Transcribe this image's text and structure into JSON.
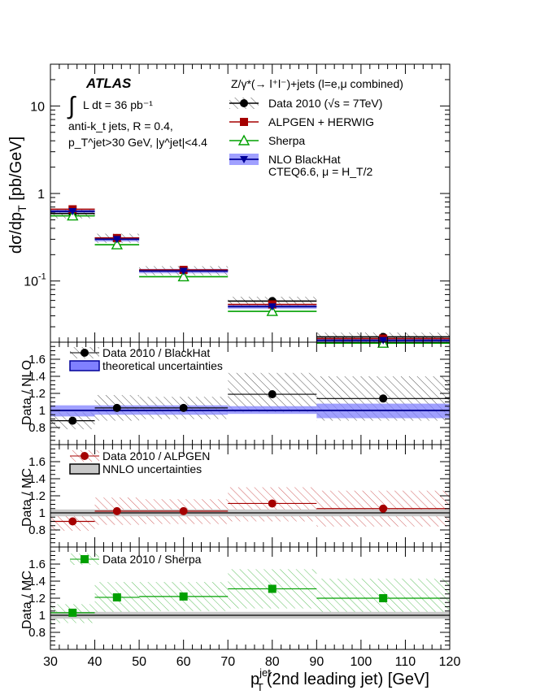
{
  "chart_data": [
    {
      "panel": "main",
      "type": "scatter",
      "ylabel": "dσ/dp_T [pb/GeV]",
      "yscale": "log",
      "ylim": [
        0.02,
        30
      ],
      "xlim": [
        30,
        120
      ],
      "bins": [
        [
          30,
          40
        ],
        [
          40,
          50
        ],
        [
          50,
          70
        ],
        [
          70,
          90
        ],
        [
          90,
          120
        ]
      ],
      "x": [
        35,
        45,
        60,
        80,
        105
      ],
      "series": [
        {
          "name": "Data 2010 (√s = 7TeV)",
          "color": "#000000",
          "marker": "circle",
          "values": [
            0.59,
            0.31,
            0.132,
            0.059,
            0.023
          ]
        },
        {
          "name": "ALPGEN + HERWIG",
          "color": "#a50000",
          "marker": "square",
          "values": [
            0.66,
            0.31,
            0.134,
            0.054,
            0.022
          ]
        },
        {
          "name": "Sherpa",
          "color": "#00a000",
          "marker": "open-triangle",
          "values": [
            0.555,
            0.26,
            0.112,
            0.045,
            0.0195
          ]
        },
        {
          "name": "NLO BlackHat",
          "color": "#000099",
          "marker": "down-triangle",
          "values": [
            0.625,
            0.3,
            0.13,
            0.051,
            0.021
          ]
        }
      ],
      "legend_title": "Z/γ*(→ l⁺l⁻)+jets (l=e,μ combined)",
      "legend_note": "CTEQ6.6, μ = H_T/2",
      "atlas_label": "ATLAS",
      "lumi_text": "L dt = 36 pb⁻¹",
      "cuts_line1": "anti-k_t jets,  R = 0.4,",
      "cuts_line2": "p_T^jet>30 GeV, |y^jet|<4.4"
    },
    {
      "panel": "ratio-nlo",
      "type": "scatter",
      "ylabel": "Data / NLO",
      "ylim": [
        0.6,
        1.8
      ],
      "x": [
        35,
        45,
        60,
        80,
        105
      ],
      "values": [
        0.88,
        1.03,
        1.03,
        1.19,
        1.14
      ],
      "band_low": [
        0.93,
        0.95,
        0.95,
        0.96,
        0.91
      ],
      "band_high": [
        1.06,
        1.06,
        1.06,
        1.05,
        1.08
      ],
      "hatch_low": [
        0.78,
        0.88,
        0.9,
        0.98,
        0.88
      ],
      "hatch_high": [
        0.98,
        1.18,
        1.16,
        1.44,
        1.4
      ],
      "legend": [
        "Data 2010 / BlackHat",
        "theoretical uncertainties"
      ]
    },
    {
      "panel": "ratio-alpgen",
      "type": "scatter",
      "ylabel": "Data / MC",
      "ylim": [
        0.6,
        1.8
      ],
      "x": [
        35,
        45,
        60,
        80,
        105
      ],
      "values": [
        0.9,
        1.02,
        1.02,
        1.11,
        1.05
      ],
      "band_low": [
        0.96,
        0.96,
        0.96,
        0.96,
        0.96
      ],
      "band_high": [
        1.04,
        1.04,
        1.04,
        1.04,
        1.04
      ],
      "hatch_low": [
        0.79,
        0.86,
        0.87,
        0.9,
        0.84
      ],
      "hatch_high": [
        1.0,
        1.18,
        1.16,
        1.3,
        1.26
      ],
      "legend": [
        "Data 2010 / ALPGEN",
        "NNLO uncertainties"
      ]
    },
    {
      "panel": "ratio-sherpa",
      "type": "scatter",
      "ylabel": "Data / MC",
      "ylim": [
        0.6,
        1.8
      ],
      "x": [
        35,
        45,
        60,
        80,
        105
      ],
      "values": [
        1.03,
        1.21,
        1.22,
        1.31,
        1.2
      ],
      "band_low": [
        0.96,
        0.96,
        0.96,
        0.96,
        0.96
      ],
      "band_high": [
        1.04,
        1.04,
        1.04,
        1.04,
        1.04
      ],
      "hatch_low": [
        0.91,
        1.03,
        1.05,
        1.08,
        0.98
      ],
      "hatch_high": [
        1.13,
        1.39,
        1.39,
        1.54,
        1.43
      ],
      "legend": [
        "Data 2010 / Sherpa"
      ]
    }
  ],
  "axes": {
    "main_ticks": [
      "10",
      "1",
      "10",
      "-1"
    ],
    "ratio_ticks": [
      "1.6",
      "1.4",
      "1.2",
      "1",
      "0.8"
    ],
    "x_ticks": [
      "30",
      "40",
      "50",
      "60",
      "70",
      "80",
      "90",
      "100",
      "110",
      "120"
    ],
    "xlabel_main": "p",
    "xlabel_sup": "jet",
    "xlabel_sub": "T",
    "xlabel_rest": "(2nd leading jet) [GeV]"
  },
  "colors": {
    "data": "#000000",
    "alpgen": "#a50000",
    "sherpa": "#00a000",
    "blackhat": "#000099",
    "band_blue": "#8080ff",
    "band_gray": "#c8c8c8"
  }
}
